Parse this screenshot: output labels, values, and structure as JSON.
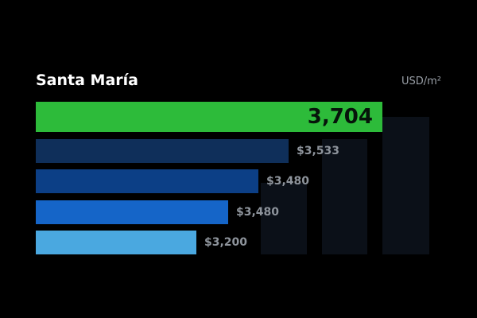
{
  "chart_data": {
    "type": "bar",
    "orientation": "horizontal",
    "title": "Santa María",
    "unit": "USD/m²",
    "categories": [
      "",
      "",
      "",
      "",
      ""
    ],
    "values": [
      3704,
      3533,
      3480,
      3480,
      3200
    ],
    "labels": [
      "3,704",
      "$3,533",
      "$3,480",
      "$3,480",
      "$3,200"
    ],
    "colors": [
      "#2dbb3a",
      "#0f2f5a",
      "#0c3f86",
      "#1565c8",
      "#4aa8e0"
    ],
    "grid": false,
    "legend": "none"
  }
}
